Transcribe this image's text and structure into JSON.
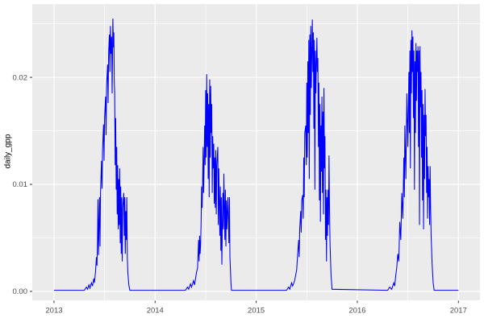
{
  "chart_data": {
    "type": "line",
    "title": "",
    "xlabel": "",
    "ylabel": "daily_gpp",
    "xlim": [
      2012.785,
      2017.213
    ],
    "ylim": [
      -0.00083,
      0.02685
    ],
    "grid": "major-minor",
    "legend_position": "none",
    "theme": "ggplot-grey",
    "x_ticks": [
      {
        "label": "2013",
        "value": 2013
      },
      {
        "label": "2014",
        "value": 2014
      },
      {
        "label": "2015",
        "value": 2015
      },
      {
        "label": "2016",
        "value": 2016
      },
      {
        "label": "2017",
        "value": 2017
      }
    ],
    "y_ticks": [
      {
        "label": "0.00",
        "value": 0.0
      },
      {
        "label": "0.01",
        "value": 0.01
      },
      {
        "label": "0.02",
        "value": 0.02
      }
    ],
    "x_minor_breaks": [
      2013.5,
      2014.5,
      2015.5,
      2016.5
    ],
    "y_minor_breaks": [
      0.005,
      0.015,
      0.025
    ],
    "series": [
      {
        "name": "daily_gpp",
        "color": "#0000FF",
        "points": [
          [
            2013.0,
            0.0001
          ],
          [
            2013.3,
            0.0001
          ],
          [
            2013.32,
            0.0004
          ],
          [
            2013.332,
            0.0002
          ],
          [
            2013.345,
            0.0006
          ],
          [
            2013.356,
            0.0003
          ],
          [
            2013.37,
            0.0008
          ],
          [
            2013.381,
            0.0005
          ],
          [
            2013.393,
            0.0012
          ],
          [
            2013.4,
            0.0008
          ],
          [
            2013.41,
            0.0018
          ],
          [
            2013.42,
            0.0032
          ],
          [
            2013.425,
            0.0024
          ],
          [
            2013.43,
            0.0046
          ],
          [
            2013.435,
            0.0086
          ],
          [
            2013.44,
            0.0034
          ],
          [
            2013.445,
            0.0062
          ],
          [
            2013.45,
            0.0088
          ],
          [
            2013.455,
            0.0042
          ],
          [
            2013.46,
            0.0092
          ],
          [
            2013.47,
            0.0122
          ],
          [
            2013.475,
            0.0096
          ],
          [
            2013.48,
            0.0132
          ],
          [
            2013.49,
            0.0156
          ],
          [
            2013.495,
            0.0122
          ],
          [
            2013.5,
            0.0162
          ],
          [
            2013.51,
            0.0182
          ],
          [
            2013.515,
            0.0146
          ],
          [
            2013.52,
            0.0192
          ],
          [
            2013.53,
            0.0212
          ],
          [
            2013.535,
            0.0176
          ],
          [
            2013.54,
            0.0222
          ],
          [
            2013.548,
            0.024
          ],
          [
            2013.553,
            0.0205
          ],
          [
            2013.558,
            0.0248
          ],
          [
            2013.563,
            0.0222
          ],
          [
            2013.57,
            0.0238
          ],
          [
            2013.575,
            0.0185
          ],
          [
            2013.582,
            0.0255
          ],
          [
            2013.588,
            0.0228
          ],
          [
            2013.592,
            0.0242
          ],
          [
            2013.596,
            0.0196
          ],
          [
            2013.6,
            0.0185
          ],
          [
            2013.605,
            0.0118
          ],
          [
            2013.61,
            0.0162
          ],
          [
            2013.615,
            0.0095
          ],
          [
            2013.62,
            0.0135
          ],
          [
            2013.625,
            0.0072
          ],
          [
            2013.63,
            0.0118
          ],
          [
            2013.635,
            0.0058
          ],
          [
            2013.64,
            0.0105
          ],
          [
            2013.645,
            0.0062
          ],
          [
            2013.65,
            0.0115
          ],
          [
            2013.655,
            0.0045
          ],
          [
            2013.66,
            0.0098
          ],
          [
            2013.665,
            0.0035
          ],
          [
            2013.67,
            0.0088
          ],
          [
            2013.675,
            0.0028
          ],
          [
            2013.68,
            0.0078
          ],
          [
            2013.69,
            0.0092
          ],
          [
            2013.695,
            0.0052
          ],
          [
            2013.7,
            0.0088
          ],
          [
            2013.705,
            0.0035
          ],
          [
            2013.71,
            0.0075
          ],
          [
            2013.715,
            0.0048
          ],
          [
            2013.72,
            0.0088
          ],
          [
            2013.725,
            0.0032
          ],
          [
            2013.73,
            0.0018
          ],
          [
            2013.74,
            0.0006
          ],
          [
            2013.75,
            0.0001
          ],
          [
            2014.3,
            0.0001
          ],
          [
            2014.32,
            0.0004
          ],
          [
            2014.332,
            0.0002
          ],
          [
            2014.35,
            0.0007
          ],
          [
            2014.36,
            0.0004
          ],
          [
            2014.38,
            0.001
          ],
          [
            2014.39,
            0.0006
          ],
          [
            2014.4,
            0.0012
          ],
          [
            2014.41,
            0.0018
          ],
          [
            2014.42,
            0.0022
          ],
          [
            2014.43,
            0.0048
          ],
          [
            2014.435,
            0.0028
          ],
          [
            2014.44,
            0.0052
          ],
          [
            2014.445,
            0.0035
          ],
          [
            2014.45,
            0.0044
          ],
          [
            2014.455,
            0.0065
          ],
          [
            2014.46,
            0.0098
          ],
          [
            2014.465,
            0.0078
          ],
          [
            2014.47,
            0.0102
          ],
          [
            2014.475,
            0.0135
          ],
          [
            2014.48,
            0.0092
          ],
          [
            2014.485,
            0.0122
          ],
          [
            2014.49,
            0.0155
          ],
          [
            2014.495,
            0.0118
          ],
          [
            2014.5,
            0.0188
          ],
          [
            2014.505,
            0.0125
          ],
          [
            2014.51,
            0.0203
          ],
          [
            2014.515,
            0.0135
          ],
          [
            2014.52,
            0.0185
          ],
          [
            2014.525,
            0.0105
          ],
          [
            2014.53,
            0.0175
          ],
          [
            2014.535,
            0.0088
          ],
          [
            2014.54,
            0.0198
          ],
          [
            2014.545,
            0.0125
          ],
          [
            2014.55,
            0.0192
          ],
          [
            2014.555,
            0.0148
          ],
          [
            2014.56,
            0.0175
          ],
          [
            2014.565,
            0.0092
          ],
          [
            2014.57,
            0.0145
          ],
          [
            2014.575,
            0.0115
          ],
          [
            2014.58,
            0.0138
          ],
          [
            2014.585,
            0.0082
          ],
          [
            2014.59,
            0.0125
          ],
          [
            2014.595,
            0.0078
          ],
          [
            2014.6,
            0.0132
          ],
          [
            2014.605,
            0.0072
          ],
          [
            2014.61,
            0.0118
          ],
          [
            2014.62,
            0.0135
          ],
          [
            2014.625,
            0.0062
          ],
          [
            2014.63,
            0.0115
          ],
          [
            2014.64,
            0.0052
          ],
          [
            2014.645,
            0.0098
          ],
          [
            2014.65,
            0.0038
          ],
          [
            2014.655,
            0.0088
          ],
          [
            2014.66,
            0.0025
          ],
          [
            2014.67,
            0.0092
          ],
          [
            2014.675,
            0.0058
          ],
          [
            2014.68,
            0.011
          ],
          [
            2014.69,
            0.0048
          ],
          [
            2014.695,
            0.0095
          ],
          [
            2014.7,
            0.0042
          ],
          [
            2014.705,
            0.0085
          ],
          [
            2014.71,
            0.0058
          ],
          [
            2014.72,
            0.0088
          ],
          [
            2014.73,
            0.0045
          ],
          [
            2014.735,
            0.0088
          ],
          [
            2014.74,
            0.0032
          ],
          [
            2014.75,
            0.0008
          ],
          [
            2014.755,
            0.0001
          ],
          [
            2015.3,
            0.0001
          ],
          [
            2015.32,
            0.0004
          ],
          [
            2015.332,
            0.0002
          ],
          [
            2015.35,
            0.0008
          ],
          [
            2015.36,
            0.0005
          ],
          [
            2015.38,
            0.001
          ],
          [
            2015.4,
            0.002
          ],
          [
            2015.41,
            0.0035
          ],
          [
            2015.42,
            0.0048
          ],
          [
            2015.425,
            0.0032
          ],
          [
            2015.43,
            0.0058
          ],
          [
            2015.44,
            0.0075
          ],
          [
            2015.445,
            0.0055
          ],
          [
            2015.45,
            0.0085
          ],
          [
            2015.46,
            0.009
          ],
          [
            2015.465,
            0.0068
          ],
          [
            2015.47,
            0.0125
          ],
          [
            2015.475,
            0.0088
          ],
          [
            2015.48,
            0.0148
          ],
          [
            2015.49,
            0.0155
          ],
          [
            2015.495,
            0.0118
          ],
          [
            2015.5,
            0.0195
          ],
          [
            2015.505,
            0.0125
          ],
          [
            2015.51,
            0.0215
          ],
          [
            2015.515,
            0.0148
          ],
          [
            2015.52,
            0.0235
          ],
          [
            2015.525,
            0.0105
          ],
          [
            2015.53,
            0.024
          ],
          [
            2015.535,
            0.0165
          ],
          [
            2015.54,
            0.0248
          ],
          [
            2015.545,
            0.019
          ],
          [
            2015.55,
            0.0225
          ],
          [
            2015.555,
            0.0254
          ],
          [
            2015.56,
            0.0205
          ],
          [
            2015.565,
            0.0242
          ],
          [
            2015.57,
            0.0152
          ],
          [
            2015.575,
            0.0235
          ],
          [
            2015.58,
            0.0095
          ],
          [
            2015.585,
            0.0225
          ],
          [
            2015.59,
            0.0185
          ],
          [
            2015.6,
            0.0237
          ],
          [
            2015.605,
            0.0205
          ],
          [
            2015.61,
            0.0218
          ],
          [
            2015.615,
            0.0135
          ],
          [
            2015.62,
            0.0195
          ],
          [
            2015.625,
            0.0085
          ],
          [
            2015.63,
            0.0175
          ],
          [
            2015.635,
            0.0065
          ],
          [
            2015.64,
            0.0155
          ],
          [
            2015.645,
            0.0112
          ],
          [
            2015.65,
            0.0182
          ],
          [
            2015.655,
            0.0092
          ],
          [
            2015.66,
            0.0168
          ],
          [
            2015.665,
            0.0072
          ],
          [
            2015.67,
            0.019
          ],
          [
            2015.675,
            0.0115
          ],
          [
            2015.68,
            0.0145
          ],
          [
            2015.685,
            0.0048
          ],
          [
            2015.69,
            0.0095
          ],
          [
            2015.695,
            0.0028
          ],
          [
            2015.7,
            0.0088
          ],
          [
            2015.705,
            0.0052
          ],
          [
            2015.71,
            0.0095
          ],
          [
            2015.715,
            0.0062
          ],
          [
            2015.72,
            0.0127
          ],
          [
            2015.725,
            0.0078
          ],
          [
            2015.73,
            0.0045
          ],
          [
            2015.74,
            0.0015
          ],
          [
            2015.75,
            0.0002
          ],
          [
            2016.3,
            0.0001
          ],
          [
            2016.32,
            0.0004
          ],
          [
            2016.34,
            0.0002
          ],
          [
            2016.36,
            0.0008
          ],
          [
            2016.37,
            0.0005
          ],
          [
            2016.38,
            0.0015
          ],
          [
            2016.39,
            0.0022
          ],
          [
            2016.4,
            0.0035
          ],
          [
            2016.41,
            0.0028
          ],
          [
            2016.42,
            0.0065
          ],
          [
            2016.43,
            0.0048
          ],
          [
            2016.44,
            0.0092
          ],
          [
            2016.45,
            0.0068
          ],
          [
            2016.46,
            0.0125
          ],
          [
            2016.465,
            0.0088
          ],
          [
            2016.47,
            0.0155
          ],
          [
            2016.48,
            0.0105
          ],
          [
            2016.49,
            0.0185
          ],
          [
            2016.5,
            0.0135
          ],
          [
            2016.51,
            0.0205
          ],
          [
            2016.515,
            0.0148
          ],
          [
            2016.52,
            0.0225
          ],
          [
            2016.525,
            0.0115
          ],
          [
            2016.53,
            0.0235
          ],
          [
            2016.535,
            0.0185
          ],
          [
            2016.54,
            0.0244
          ],
          [
            2016.545,
            0.0205
          ],
          [
            2016.55,
            0.0238
          ],
          [
            2016.555,
            0.0162
          ],
          [
            2016.56,
            0.0225
          ],
          [
            2016.565,
            0.0095
          ],
          [
            2016.57,
            0.0215
          ],
          [
            2016.575,
            0.0148
          ],
          [
            2016.58,
            0.0232
          ],
          [
            2016.585,
            0.0178
          ],
          [
            2016.59,
            0.0225
          ],
          [
            2016.595,
            0.0205
          ],
          [
            2016.6,
            0.0229
          ],
          [
            2016.605,
            0.0135
          ],
          [
            2016.61,
            0.0225
          ],
          [
            2016.615,
            0.0062
          ],
          [
            2016.62,
            0.0229
          ],
          [
            2016.625,
            0.0172
          ],
          [
            2016.63,
            0.0205
          ],
          [
            2016.635,
            0.0125
          ],
          [
            2016.64,
            0.0188
          ],
          [
            2016.645,
            0.0085
          ],
          [
            2016.65,
            0.0175
          ],
          [
            2016.655,
            0.0058
          ],
          [
            2016.66,
            0.0165
          ],
          [
            2016.665,
            0.0105
          ],
          [
            2016.67,
            0.0189
          ],
          [
            2016.675,
            0.0145
          ],
          [
            2016.68,
            0.0165
          ],
          [
            2016.685,
            0.0092
          ],
          [
            2016.69,
            0.0135
          ],
          [
            2016.695,
            0.0068
          ],
          [
            2016.7,
            0.0117
          ],
          [
            2016.705,
            0.0088
          ],
          [
            2016.71,
            0.0105
          ],
          [
            2016.715,
            0.0062
          ],
          [
            2016.72,
            0.0117
          ],
          [
            2016.725,
            0.0078
          ],
          [
            2016.73,
            0.0052
          ],
          [
            2016.74,
            0.0025
          ],
          [
            2016.75,
            0.0008
          ],
          [
            2016.76,
            0.0001
          ],
          [
            2017.0,
            0.0001
          ]
        ]
      }
    ]
  },
  "style": {
    "background": "#FFFFFF",
    "panel_bg": "#EBEBEB",
    "grid_major_color": "#FFFFFF",
    "grid_minor_color": "#FFFFFF",
    "axis_text_color": "#4D4D4D",
    "axis_title_color": "#000000",
    "tick_color": "#333333",
    "line_color": "#0000FF"
  }
}
